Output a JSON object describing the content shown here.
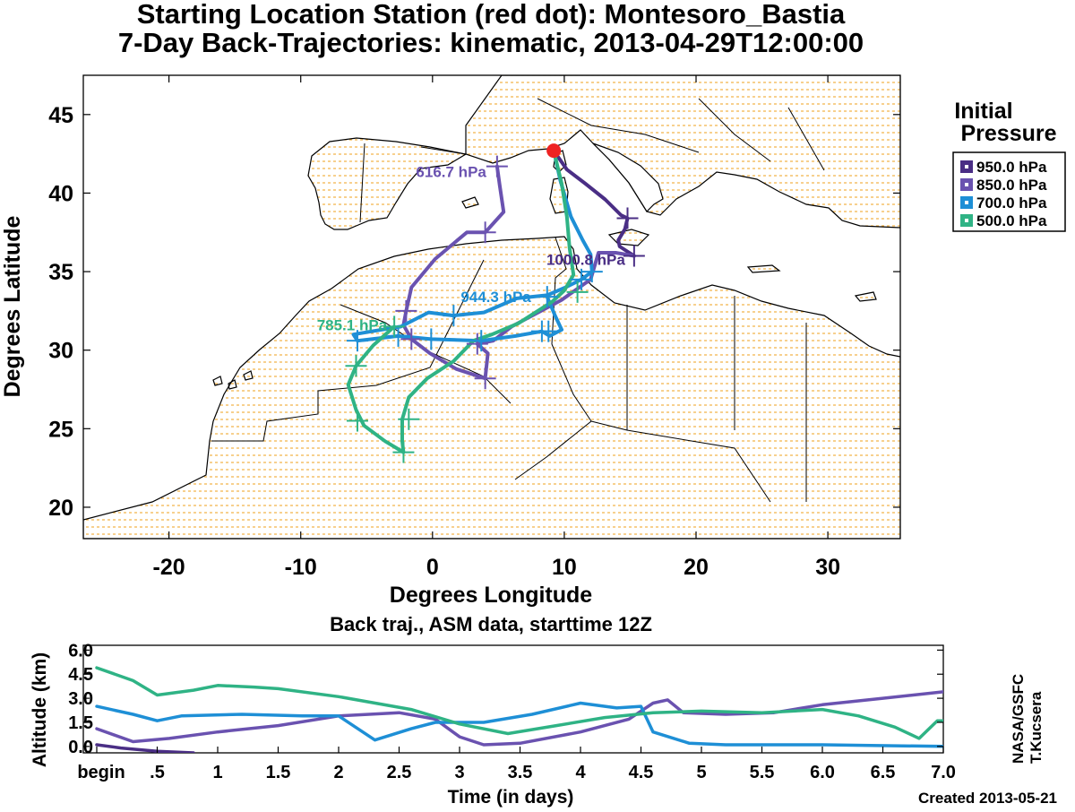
{
  "header": {
    "title_line1": "Starting Location Station (red dot):  Montesoro_Bastia",
    "title_line2": "7-Day Back-Trajectories: kinematic, 2013-04-29T12:00:00"
  },
  "credits": {
    "vertical_1": "NASA/GSFC",
    "vertical_2": "T.Kucsera",
    "created": "Created 2013-05-21"
  },
  "chart_data": [
    {
      "type": "line",
      "subtype": "map-trajectories",
      "xlabel": "Degrees Longitude",
      "ylabel": "Degrees Latitude",
      "xlim": [
        -26.5,
        35.5
      ],
      "ylim": [
        18,
        47.5
      ],
      "xticks": [
        -20,
        -10,
        0,
        10,
        20,
        30
      ],
      "yticks": [
        20,
        25,
        30,
        35,
        40,
        45
      ],
      "legend_title_line1": "Initial",
      "legend_title_line2": "Pressure",
      "legend_placement": "right",
      "start_point": {
        "lon": 9.2,
        "lat": 42.7,
        "color": "#ee2222"
      },
      "series": [
        {
          "name": "950.0 hPa",
          "color": "#4a2e85",
          "end_label": "1000.8 hPa",
          "points": [
            [
              9.2,
              42.7
            ],
            [
              10.2,
              41.5
            ],
            [
              11.6,
              40.6
            ],
            [
              13.1,
              39.6
            ],
            [
              14.3,
              38.6
            ],
            [
              14.8,
              38.4
            ],
            [
              14.6,
              37.7
            ],
            [
              14.1,
              37.0
            ],
            [
              14.2,
              36.6
            ],
            [
              15.3,
              36.0
            ]
          ]
        },
        {
          "name": "850.0 hPa",
          "color": "#6a52b0",
          "end_label": "616.7 hPa",
          "points": [
            [
              15.3,
              36.0
            ],
            [
              13.9,
              36.2
            ],
            [
              12.6,
              36.2
            ],
            [
              12.0,
              34.5
            ],
            [
              9.8,
              33.2
            ],
            [
              6.0,
              31.5
            ],
            [
              4.6,
              30.6
            ],
            [
              3.4,
              30.4
            ],
            [
              4.2,
              29.8
            ],
            [
              4.0,
              28.2
            ],
            [
              1.8,
              28.8
            ],
            [
              -0.2,
              29.8
            ],
            [
              -1.6,
              30.7
            ],
            [
              -2.2,
              31.6
            ],
            [
              -2.0,
              32.5
            ],
            [
              -1.6,
              34.0
            ],
            [
              0.2,
              35.8
            ],
            [
              2.6,
              37.5
            ],
            [
              4.0,
              37.5
            ],
            [
              5.4,
              38.8
            ],
            [
              5.1,
              40.5
            ],
            [
              4.9,
              41.7
            ]
          ]
        },
        {
          "name": "700.0 hPa",
          "color": "#1e8fd6",
          "end_label": "944.3 hPa",
          "points": [
            [
              9.2,
              42.7
            ],
            [
              9.7,
              40.8
            ],
            [
              10.5,
              38.5
            ],
            [
              11.4,
              37.0
            ],
            [
              12.0,
              36.1
            ],
            [
              12.1,
              35.0
            ],
            [
              11.3,
              34.5
            ],
            [
              10.1,
              34.0
            ],
            [
              8.7,
              33.5
            ],
            [
              6.4,
              33.3
            ],
            [
              3.9,
              32.4
            ],
            [
              1.6,
              32.2
            ],
            [
              -0.3,
              32.4
            ],
            [
              -2.4,
              31.5
            ],
            [
              -4.6,
              31.2
            ],
            [
              -6.0,
              31.0
            ],
            [
              -5.7,
              30.6
            ],
            [
              -2.6,
              30.9
            ],
            [
              -0.1,
              30.7
            ],
            [
              3.7,
              30.6
            ],
            [
              6.3,
              30.9
            ],
            [
              8.3,
              31.2
            ],
            [
              8.9,
              30.9
            ],
            [
              9.8,
              31.3
            ],
            [
              9.3,
              32.2
            ],
            [
              8.7,
              33.4
            ]
          ]
        },
        {
          "name": "500.0 hPa",
          "color": "#2fb385",
          "end_label": "785.1 hPa",
          "points": [
            [
              9.2,
              42.7
            ],
            [
              9.8,
              40.6
            ],
            [
              10.2,
              38.5
            ],
            [
              10.4,
              36.5
            ],
            [
              10.7,
              34.8
            ],
            [
              10.0,
              33.8
            ],
            [
              9.1,
              33.1
            ],
            [
              6.5,
              31.7
            ],
            [
              4.5,
              31.0
            ],
            [
              3.1,
              30.6
            ],
            [
              1.6,
              29.3
            ],
            [
              -0.4,
              28.2
            ],
            [
              -1.8,
              27.0
            ],
            [
              -2.3,
              25.6
            ],
            [
              -2.3,
              24.2
            ],
            [
              -2.2,
              23.5
            ],
            [
              -3.6,
              24.2
            ],
            [
              -5.2,
              25.2
            ],
            [
              -5.8,
              26.2
            ],
            [
              -6.4,
              27.8
            ],
            [
              -5.8,
              29.0
            ],
            [
              -4.5,
              30.3
            ],
            [
              -2.9,
              31.5
            ]
          ]
        }
      ],
      "hour_marks": [
        {
          "series": 0,
          "points": [
            [
              14.8,
              38.4
            ],
            [
              15.3,
              36.0
            ]
          ]
        },
        {
          "series": 1,
          "points": [
            [
              4.9,
              41.7
            ],
            [
              4.0,
              37.5
            ],
            [
              -2.0,
              32.5
            ],
            [
              -1.6,
              30.7
            ],
            [
              3.4,
              30.4
            ],
            [
              4.0,
              28.2
            ]
          ]
        },
        {
          "series": 2,
          "points": [
            [
              8.7,
              33.4
            ],
            [
              12.1,
              35.0
            ],
            [
              11.3,
              34.5
            ],
            [
              8.8,
              31.2
            ],
            [
              8.3,
              31.2
            ],
            [
              1.6,
              32.2
            ],
            [
              -0.1,
              30.7
            ],
            [
              -2.6,
              30.9
            ],
            [
              -5.7,
              30.6
            ],
            [
              3.7,
              30.6
            ]
          ]
        },
        {
          "series": 3,
          "points": [
            [
              -2.9,
              31.5
            ],
            [
              -5.8,
              29.0
            ],
            [
              -5.7,
              25.5
            ],
            [
              -2.2,
              23.5
            ],
            [
              -1.8,
              25.6
            ],
            [
              11.0,
              33.7
            ]
          ]
        }
      ]
    },
    {
      "type": "line",
      "subtype": "altitude-timeseries",
      "title": "Back traj., ASM data, starttime 12Z",
      "xlabel": "Time (in days)",
      "ylabel": "Altitude (km)",
      "xlim": [
        0,
        7
      ],
      "ylim": [
        -0.4,
        6.3
      ],
      "xticks": [
        0,
        0.5,
        1,
        1.5,
        2,
        2.5,
        3,
        3.5,
        4,
        4.5,
        5,
        5.5,
        6,
        6.5,
        7
      ],
      "xtick_labels": [
        "begin",
        ".5",
        "1",
        "1.5",
        "2",
        "2.5",
        "3",
        "3.5",
        "4",
        "4.5",
        "5",
        "5.5",
        "6.0",
        "6.5",
        "7.0"
      ],
      "yticks": [
        0,
        1.5,
        3.0,
        4.5,
        6.0
      ],
      "ytick_labels": [
        "0.0",
        "1.5",
        "3.0",
        "4.5",
        "6.0"
      ],
      "series": [
        {
          "name": "950.0 hPa",
          "color": "#4a2e85",
          "points": [
            [
              0,
              0.1
            ],
            [
              0.2,
              -0.1
            ],
            [
              0.5,
              -0.3
            ],
            [
              0.8,
              -0.4
            ]
          ]
        },
        {
          "name": "850.0 hPa",
          "color": "#6a52b0",
          "points": [
            [
              0,
              1.1
            ],
            [
              0.3,
              0.3
            ],
            [
              0.6,
              0.5
            ],
            [
              1.0,
              0.9
            ],
            [
              1.5,
              1.3
            ],
            [
              2.0,
              1.9
            ],
            [
              2.5,
              2.1
            ],
            [
              2.8,
              1.7
            ],
            [
              3.0,
              0.6
            ],
            [
              3.2,
              0.1
            ],
            [
              3.5,
              0.2
            ],
            [
              4.0,
              0.9
            ],
            [
              4.4,
              1.7
            ],
            [
              4.6,
              2.7
            ],
            [
              4.72,
              2.9
            ],
            [
              4.85,
              2.1
            ],
            [
              5.2,
              2.0
            ],
            [
              5.6,
              2.1
            ],
            [
              6.0,
              2.6
            ],
            [
              6.5,
              3.0
            ],
            [
              7.0,
              3.4
            ]
          ]
        },
        {
          "name": "700.0 hPa",
          "color": "#1e8fd6",
          "points": [
            [
              0,
              2.5
            ],
            [
              0.3,
              2.0
            ],
            [
              0.5,
              1.6
            ],
            [
              0.7,
              1.9
            ],
            [
              1.2,
              2.0
            ],
            [
              1.7,
              1.9
            ],
            [
              2.0,
              1.9
            ],
            [
              2.3,
              0.4
            ],
            [
              2.6,
              1.1
            ],
            [
              2.8,
              1.5
            ],
            [
              3.2,
              1.5
            ],
            [
              3.6,
              2.0
            ],
            [
              4.0,
              2.7
            ],
            [
              4.3,
              2.4
            ],
            [
              4.5,
              2.5
            ],
            [
              4.6,
              0.9
            ],
            [
              4.9,
              0.2
            ],
            [
              5.2,
              0.1
            ],
            [
              6.0,
              0.1
            ],
            [
              7.0,
              0.0
            ]
          ]
        },
        {
          "name": "500.0 hPa",
          "color": "#2fb385",
          "points": [
            [
              0,
              4.9
            ],
            [
              0.3,
              4.1
            ],
            [
              0.5,
              3.2
            ],
            [
              0.8,
              3.5
            ],
            [
              1.0,
              3.8
            ],
            [
              1.3,
              3.7
            ],
            [
              1.5,
              3.6
            ],
            [
              2.0,
              3.1
            ],
            [
              2.6,
              2.3
            ],
            [
              3.0,
              1.4
            ],
            [
              3.4,
              0.8
            ],
            [
              3.8,
              1.3
            ],
            [
              4.2,
              1.8
            ],
            [
              4.6,
              2.1
            ],
            [
              5.0,
              2.2
            ],
            [
              5.5,
              2.1
            ],
            [
              6.0,
              2.3
            ],
            [
              6.3,
              1.9
            ],
            [
              6.6,
              1.2
            ],
            [
              6.8,
              0.5
            ],
            [
              6.95,
              1.6
            ],
            [
              7.0,
              1.6
            ]
          ]
        }
      ]
    }
  ]
}
